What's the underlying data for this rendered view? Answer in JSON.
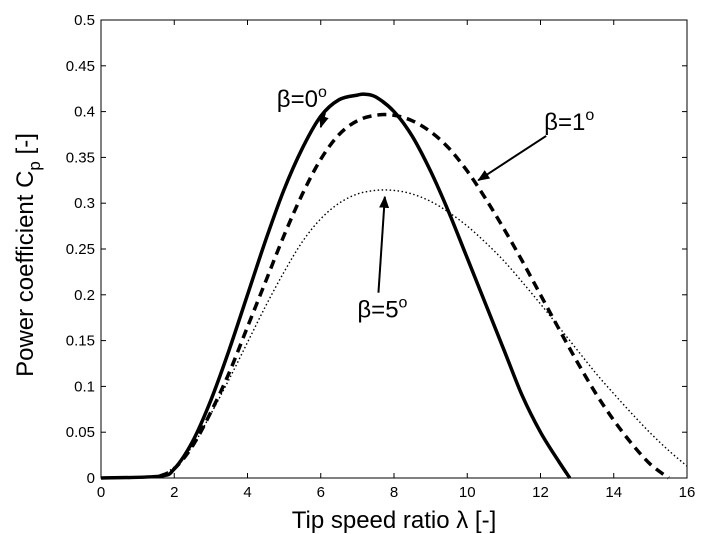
{
  "chart_data": {
    "type": "line",
    "xlabel": "Tip speed ratio λ [-]",
    "ylabel_main": "Power coefficient C",
    "ylabel_sub": "p",
    "ylabel_suffix": " [-]",
    "xlim": [
      0,
      16
    ],
    "ylim": [
      0,
      0.5
    ],
    "x_ticks": [
      0,
      2,
      4,
      6,
      8,
      10,
      12,
      14,
      16
    ],
    "y_ticks": [
      0,
      0.05,
      0.1,
      0.15,
      0.2,
      0.25,
      0.3,
      0.35,
      0.4,
      0.45,
      0.5
    ],
    "grid": false,
    "series": [
      {
        "beta_deg": 0,
        "line_style": "solid",
        "x": [
          0,
          1.6,
          2.0,
          2.5,
          3.0,
          3.5,
          4.0,
          4.5,
          5.0,
          5.5,
          6.0,
          6.5,
          7.0,
          7.2,
          7.5,
          8.0,
          8.5,
          9.0,
          9.5,
          10.0,
          10.5,
          11.0,
          11.5,
          12.0,
          12.5,
          12.8
        ],
        "y": [
          0,
          0.002,
          0.01,
          0.04,
          0.085,
          0.14,
          0.2,
          0.26,
          0.315,
          0.36,
          0.395,
          0.413,
          0.418,
          0.419,
          0.416,
          0.4,
          0.373,
          0.335,
          0.29,
          0.24,
          0.19,
          0.14,
          0.09,
          0.05,
          0.018,
          0
        ]
      },
      {
        "beta_deg": 1,
        "line_style": "dashed",
        "x": [
          1.6,
          2.0,
          2.5,
          3.0,
          3.5,
          4.0,
          4.5,
          5.0,
          5.5,
          6.0,
          6.5,
          7.0,
          7.5,
          8.0,
          8.5,
          9.0,
          9.5,
          10.0,
          10.5,
          11.0,
          11.5,
          12.0,
          12.5,
          13.0,
          13.5,
          14.0,
          14.5,
          15.0,
          15.5
        ],
        "y": [
          0.002,
          0.01,
          0.035,
          0.072,
          0.115,
          0.165,
          0.215,
          0.265,
          0.31,
          0.348,
          0.375,
          0.39,
          0.396,
          0.396,
          0.39,
          0.378,
          0.36,
          0.335,
          0.305,
          0.272,
          0.237,
          0.2,
          0.163,
          0.127,
          0.093,
          0.063,
          0.037,
          0.015,
          0
        ]
      },
      {
        "beta_deg": 5,
        "line_style": "dotted",
        "x": [
          1.6,
          2.0,
          2.5,
          3.0,
          3.5,
          4.0,
          4.5,
          5.0,
          5.5,
          6.0,
          6.5,
          7.0,
          7.5,
          8.0,
          8.5,
          9.0,
          9.5,
          10.0,
          10.5,
          11.0,
          11.5,
          12.0,
          12.5,
          13.0,
          13.5,
          14.0,
          14.5,
          15.0,
          15.5,
          16.0
        ],
        "y": [
          0.002,
          0.012,
          0.035,
          0.07,
          0.108,
          0.148,
          0.188,
          0.225,
          0.258,
          0.283,
          0.3,
          0.31,
          0.314,
          0.314,
          0.31,
          0.302,
          0.29,
          0.275,
          0.257,
          0.237,
          0.214,
          0.19,
          0.165,
          0.14,
          0.115,
          0.092,
          0.07,
          0.049,
          0.03,
          0.013
        ]
      }
    ],
    "annotations": [
      {
        "id": "beta0",
        "text": "β=0",
        "sup": "o",
        "text_at": [
          4.8,
          0.405
        ],
        "arrow_to": [
          6.0,
          0.383
        ]
      },
      {
        "id": "beta1",
        "text": "β=1",
        "sup": "o",
        "text_at": [
          12.1,
          0.38
        ],
        "arrow_to": [
          10.3,
          0.325
        ]
      },
      {
        "id": "beta5",
        "text": "β=5",
        "sup": "o",
        "text_at": [
          7.0,
          0.175
        ],
        "arrow_to": [
          7.75,
          0.307
        ]
      }
    ]
  }
}
